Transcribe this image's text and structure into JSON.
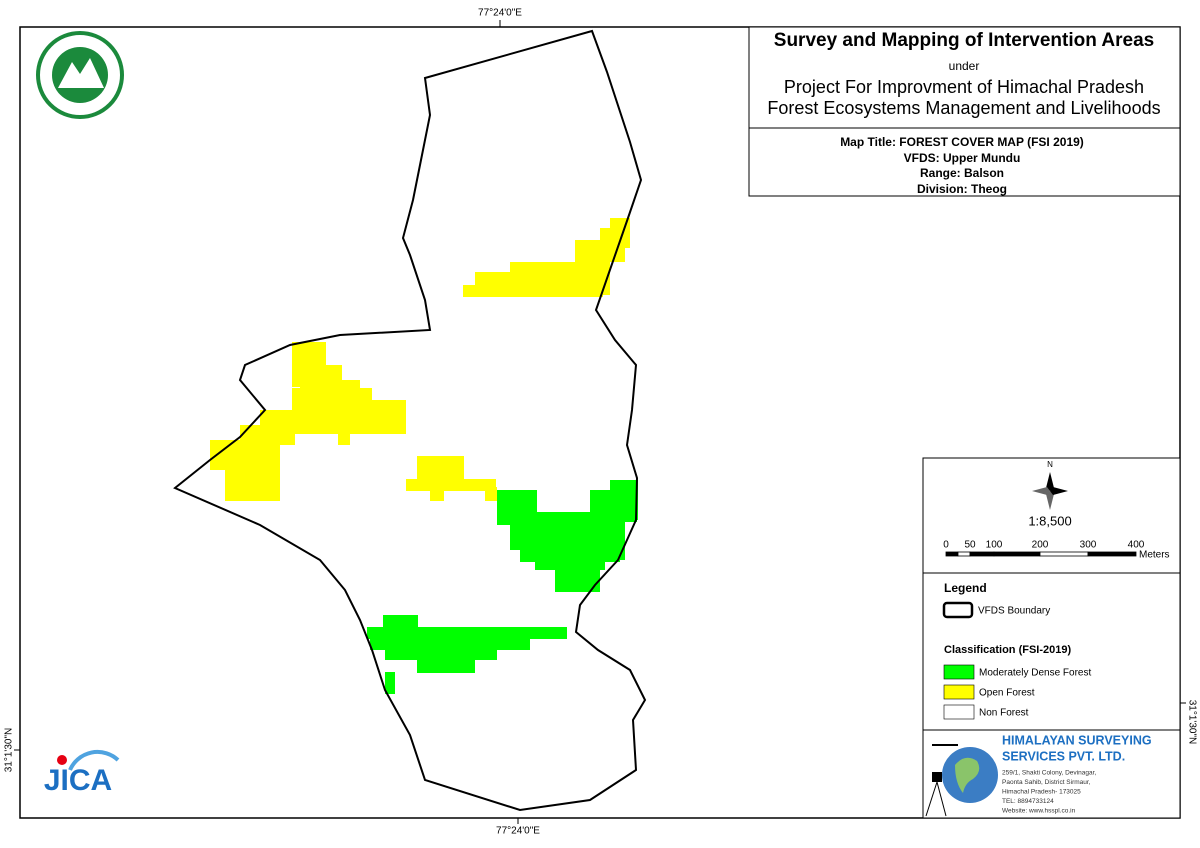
{
  "graticule": {
    "top_lon": "77°24'0\"E",
    "bottom_lon": "77°24'0\"E",
    "left_lat": "31°1'30\"N",
    "right_lat": "31°1'30\"N"
  },
  "header": {
    "title": "Survey and Mapping of Intervention Areas",
    "under": "under",
    "project_line1": "Project For Improvment of Himachal Pradesh",
    "project_line2": "Forest Ecosystems Management and Livelihoods"
  },
  "map_info": {
    "map_title": "Map Title: FOREST COVER MAP (FSI 2019)",
    "vfds": "VFDS: Upper Mundu",
    "range": "Range: Balson",
    "division": "Division: Theog"
  },
  "north_arrow": "N",
  "scale": {
    "ratio": "1:8,500",
    "labels": [
      "0",
      "50",
      "100",
      "200",
      "300",
      "400"
    ],
    "unit": "Meters"
  },
  "legend": {
    "title": "Legend",
    "boundary": "VFDS Boundary",
    "classification_title": "Classification (FSI-2019)",
    "classes": [
      {
        "name": "Moderately Dense Forest",
        "color": "#00ff00"
      },
      {
        "name": "Open Forest",
        "color": "#ffff00"
      },
      {
        "name": "Non Forest",
        "color": "#ffffff"
      }
    ]
  },
  "company": {
    "name_line1": "HIMALAYAN SURVEYING",
    "name_line2": "SERVICES PVT. LTD.",
    "address": [
      "259/1, Shakti Colony, Devinagar,",
      "Paonta Sahib, District Sirmaur,",
      "Himachal Pradesh- 173025",
      "TEL: 8894733124",
      "Website: www.hsspl.co.in"
    ]
  },
  "logos": {
    "jica": "JICA"
  }
}
